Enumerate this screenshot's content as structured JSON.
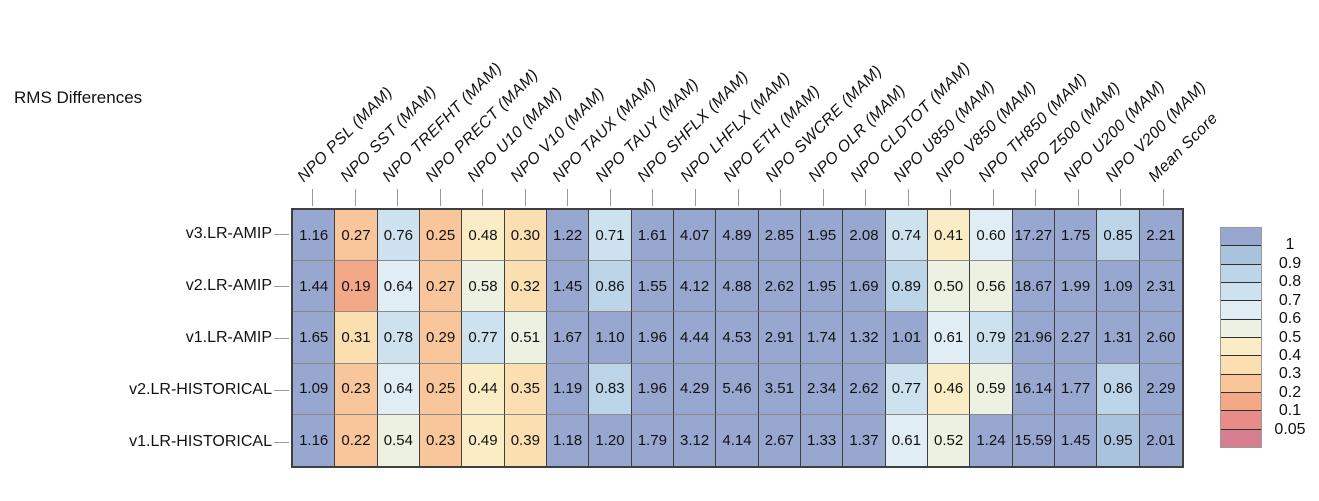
{
  "title": "RMS Differences",
  "chart_data": {
    "type": "heatmap",
    "title": "RMS Differences",
    "columns": [
      "NPO PSL (MAM)",
      "NPO SST (MAM)",
      "NPO TREFHT (MAM)",
      "NPO PRECT (MAM)",
      "NPO U10 (MAM)",
      "NPO V10 (MAM)",
      "NPO TAUX (MAM)",
      "NPO TAUY (MAM)",
      "NPO SHFLX (MAM)",
      "NPO LHFLX (MAM)",
      "NPO ETH (MAM)",
      "NPO SWCRE (MAM)",
      "NPO OLR (MAM)",
      "NPO CLDTOT (MAM)",
      "NPO U850 (MAM)",
      "NPO V850 (MAM)",
      "NPO TH850 (MAM)",
      "NPO Z500 (MAM)",
      "NPO U200 (MAM)",
      "NPO V200 (MAM)",
      "Mean Score"
    ],
    "rows": [
      "v3.LR-AMIP",
      "v2.LR-AMIP",
      "v1.LR-AMIP",
      "v2.LR-HISTORICAL",
      "v1.LR-HISTORICAL"
    ],
    "values": [
      [
        1.16,
        0.27,
        0.76,
        0.25,
        0.48,
        0.3,
        1.22,
        0.71,
        1.61,
        4.07,
        4.89,
        2.85,
        1.95,
        2.08,
        0.74,
        0.41,
        0.6,
        17.27,
        1.75,
        0.85,
        2.21
      ],
      [
        1.44,
        0.19,
        0.64,
        0.27,
        0.58,
        0.32,
        1.45,
        0.86,
        1.55,
        4.12,
        4.88,
        2.62,
        1.95,
        1.69,
        0.89,
        0.5,
        0.56,
        18.67,
        1.99,
        1.09,
        2.31
      ],
      [
        1.65,
        0.31,
        0.78,
        0.29,
        0.77,
        0.51,
        1.67,
        1.1,
        1.96,
        4.44,
        4.53,
        2.91,
        1.74,
        1.32,
        1.01,
        0.61,
        0.79,
        21.96,
        2.27,
        1.31,
        2.6
      ],
      [
        1.09,
        0.23,
        0.64,
        0.25,
        0.44,
        0.35,
        1.19,
        0.83,
        1.96,
        4.29,
        5.46,
        3.51,
        2.34,
        2.62,
        0.77,
        0.46,
        0.59,
        16.14,
        1.77,
        0.86,
        2.29
      ],
      [
        1.16,
        0.22,
        0.54,
        0.23,
        0.49,
        0.39,
        1.18,
        1.2,
        1.79,
        3.12,
        4.14,
        2.67,
        1.33,
        1.37,
        0.61,
        0.52,
        1.24,
        15.59,
        1.45,
        0.95,
        2.01
      ]
    ],
    "value_decimals": 2,
    "colorbar": {
      "position": "right",
      "tick_labels": [
        "1",
        "0.9",
        "0.8",
        "0.7",
        "0.6",
        "0.5",
        "0.4",
        "0.3",
        "0.2",
        "0.1",
        "0.05"
      ],
      "bin_edges_descending": [
        1,
        0.9,
        0.8,
        0.7,
        0.6,
        0.5,
        0.4,
        0.3,
        0.2,
        0.1,
        0.05
      ],
      "segment_colors": [
        "#98a7cf",
        "#a9c3de",
        "#bcd5e9",
        "#cee1ef",
        "#e1edf5",
        "#edf1e1",
        "#faedc5",
        "#fbdfb1",
        "#f8c69a",
        "#f3a887",
        "#e98c88",
        "#d87e91"
      ]
    }
  }
}
